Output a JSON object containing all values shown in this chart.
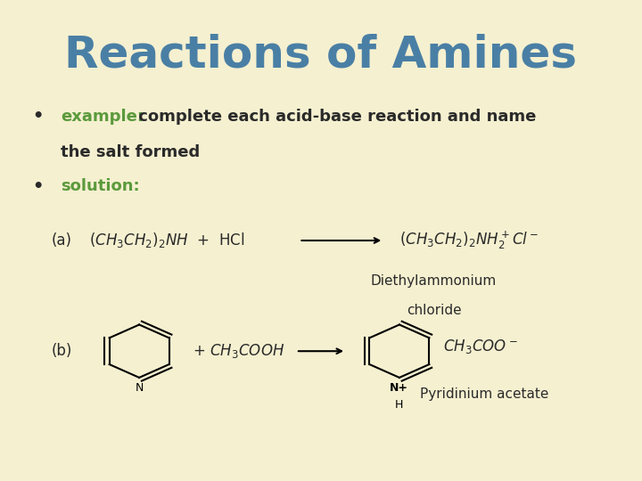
{
  "background_color": "#f5f0d0",
  "title": "Reactions of Amines",
  "title_color": "#4a7fa5",
  "title_fontsize": 36,
  "title_bold": true,
  "bullet_color": "#4a7fa5",
  "bullet_keyword_color": "#5b9a3c",
  "text_color": "#2a2a2a",
  "bullet1_keyword": "example:",
  "bullet1_text": " complete each acid-base reaction and name\n    the salt formed",
  "bullet2_keyword": "solution:",
  "reaction_a_label": "(a)",
  "reaction_a_lhs": "(CH₃CH₂)₂NH  +  HCl",
  "reaction_a_rhs": "(CH₃CH₂)₂NH₂⁺Cl⁻",
  "reaction_a_name1": "Diethylammonium",
  "reaction_a_name2": "chloride",
  "reaction_b_label": "(b)",
  "reaction_b_plus": "+  CH₃COOH",
  "reaction_b_rhs_text": "CH₃COO⁻",
  "reaction_b_name": "Pyridinium acetate"
}
